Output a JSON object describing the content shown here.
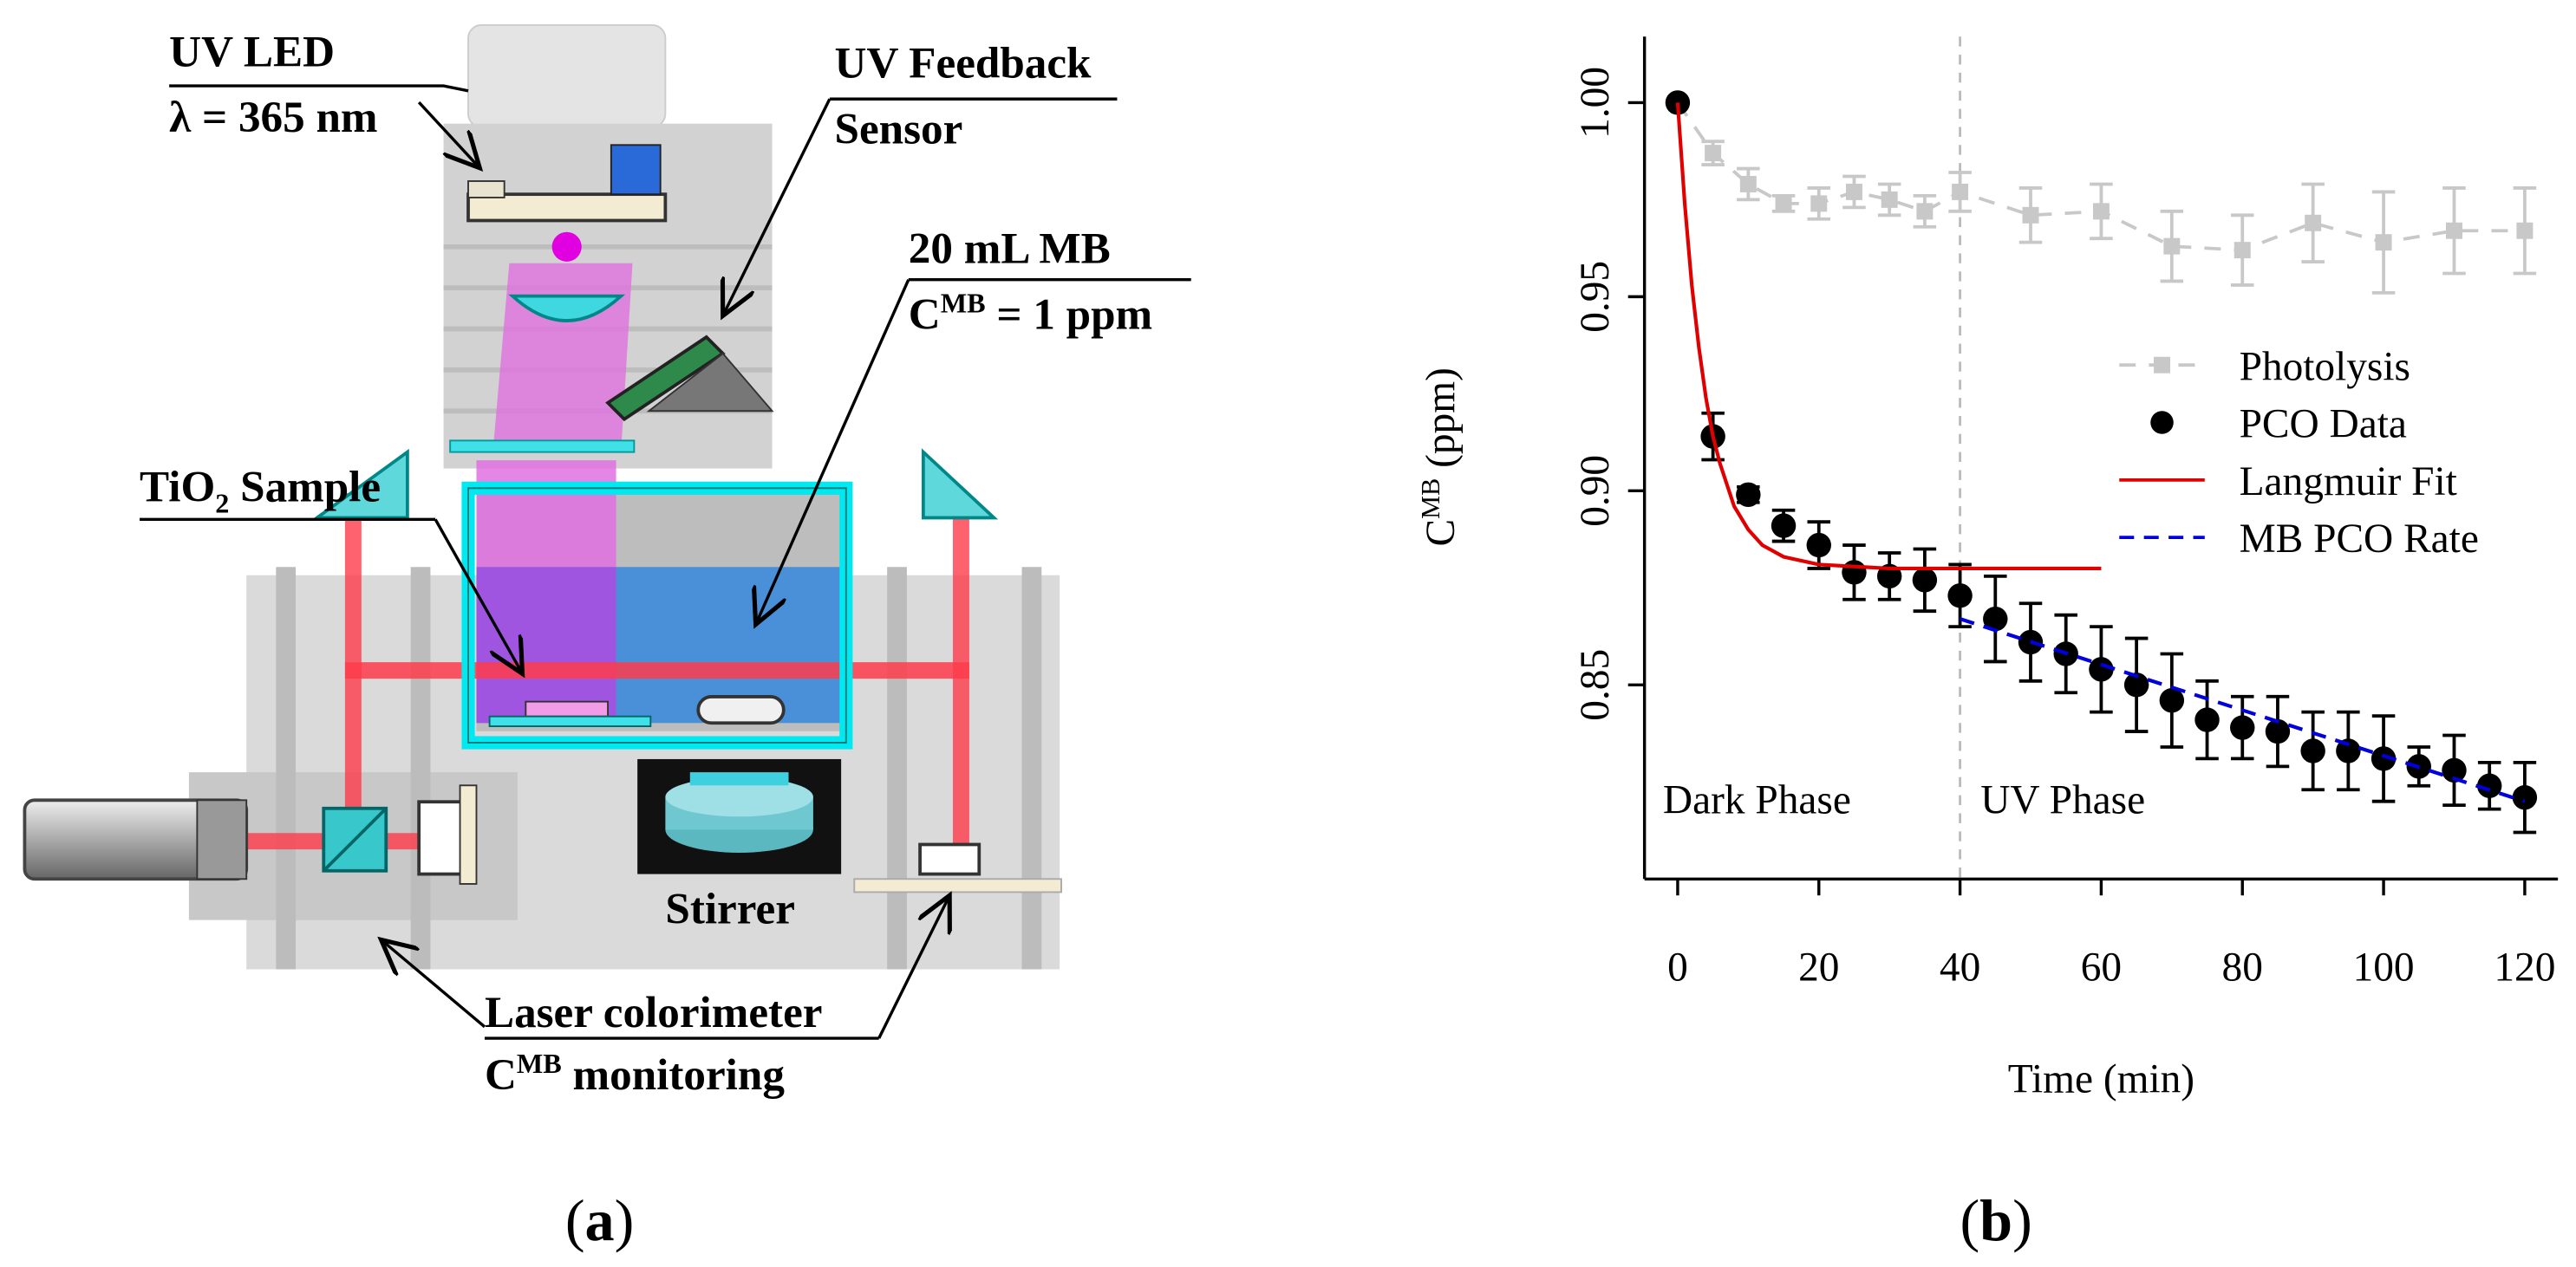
{
  "panel_a": {
    "label": "a",
    "uv_led": "UV LED",
    "wavelength": "λ = 365 nm",
    "feedback_1": "UV Feedback",
    "feedback_2": "Sensor",
    "volume": "20 mL MB",
    "concentration": {
      "base": "C",
      "sup": "MB",
      "rest": " = 1 ppm"
    },
    "sample": {
      "base": "TiO",
      "sub": "2",
      "rest": " Sample"
    },
    "stirrer": "Stirrer",
    "colorimeter_1": "Laser colorimeter",
    "colorimeter_2": {
      "base": "C",
      "sup": "MB",
      "rest": " monitoring"
    }
  },
  "chart_data": {
    "type": "scatter",
    "label": "b",
    "xlabel": "Time (min)",
    "ylabel": {
      "base": "C",
      "sup": "MB",
      "rest": " (ppm)"
    },
    "xlim": [
      -4.7,
      124.7
    ],
    "ylim": [
      0.8,
      1.017
    ],
    "xticks": [
      0,
      20,
      40,
      60,
      80,
      100,
      120
    ],
    "yticks": [
      {
        "value": 0.85,
        "label": "0.85"
      },
      {
        "value": 0.9,
        "label": "0.90"
      },
      {
        "value": 0.95,
        "label": "0.95"
      },
      {
        "value": 1.0,
        "label": "1.00"
      }
    ],
    "phase_line": 40,
    "annotations": [
      {
        "text": "Dark Phase",
        "x": 0
      },
      {
        "text": "UV Phase",
        "x": 45
      }
    ],
    "legend_position": "right",
    "series": [
      {
        "name": "Photolysis",
        "color": "#c8c8c8",
        "marker": "square",
        "line": "dashed",
        "x": [
          0,
          5,
          10,
          15,
          20,
          25,
          30,
          35,
          40,
          50,
          60,
          70,
          80,
          90,
          100,
          110,
          120
        ],
        "values": [
          1.0,
          0.987,
          0.979,
          0.974,
          0.974,
          0.977,
          0.975,
          0.972,
          0.977,
          0.971,
          0.972,
          0.963,
          0.962,
          0.969,
          0.964,
          0.967,
          0.967
        ],
        "errors": [
          0,
          0.003,
          0.004,
          0.002,
          0.004,
          0.004,
          0.004,
          0.004,
          0.005,
          0.007,
          0.007,
          0.009,
          0.009,
          0.01,
          0.013,
          0.011,
          0.011
        ]
      },
      {
        "name": "PCO Data",
        "color": "#000000",
        "marker": "circle",
        "x": [
          0,
          5,
          10,
          15,
          20,
          25,
          30,
          35,
          40,
          45,
          50,
          55,
          60,
          65,
          70,
          75,
          80,
          85,
          90,
          95,
          100,
          105,
          110,
          115,
          120
        ],
        "values": [
          1.0,
          0.914,
          0.899,
          0.891,
          0.886,
          0.879,
          0.878,
          0.877,
          0.873,
          0.867,
          0.861,
          0.858,
          0.854,
          0.85,
          0.846,
          0.841,
          0.839,
          0.838,
          0.833,
          0.833,
          0.831,
          0.829,
          0.828,
          0.824,
          0.821
        ],
        "errors": [
          0,
          0.006,
          0.002,
          0.004,
          0.006,
          0.007,
          0.006,
          0.008,
          0.008,
          0.011,
          0.01,
          0.01,
          0.011,
          0.012,
          0.012,
          0.01,
          0.008,
          0.009,
          0.01,
          0.01,
          0.011,
          0.005,
          0.009,
          0.006,
          0.009
        ]
      },
      {
        "name": "Langmuir Fit",
        "color": "#e00000",
        "line": "solid",
        "x": [
          0,
          1,
          2,
          3,
          4,
          5,
          6,
          8,
          10,
          12,
          15,
          20,
          30,
          60
        ],
        "values": [
          1.0,
          0.974,
          0.953,
          0.937,
          0.924,
          0.914,
          0.907,
          0.896,
          0.89,
          0.886,
          0.883,
          0.881,
          0.88,
          0.88
        ]
      },
      {
        "name": "MB PCO Rate",
        "color": "#0000dd",
        "line": "dashed",
        "x": [
          40,
          120
        ],
        "values": [
          0.867,
          0.82
        ]
      }
    ]
  }
}
